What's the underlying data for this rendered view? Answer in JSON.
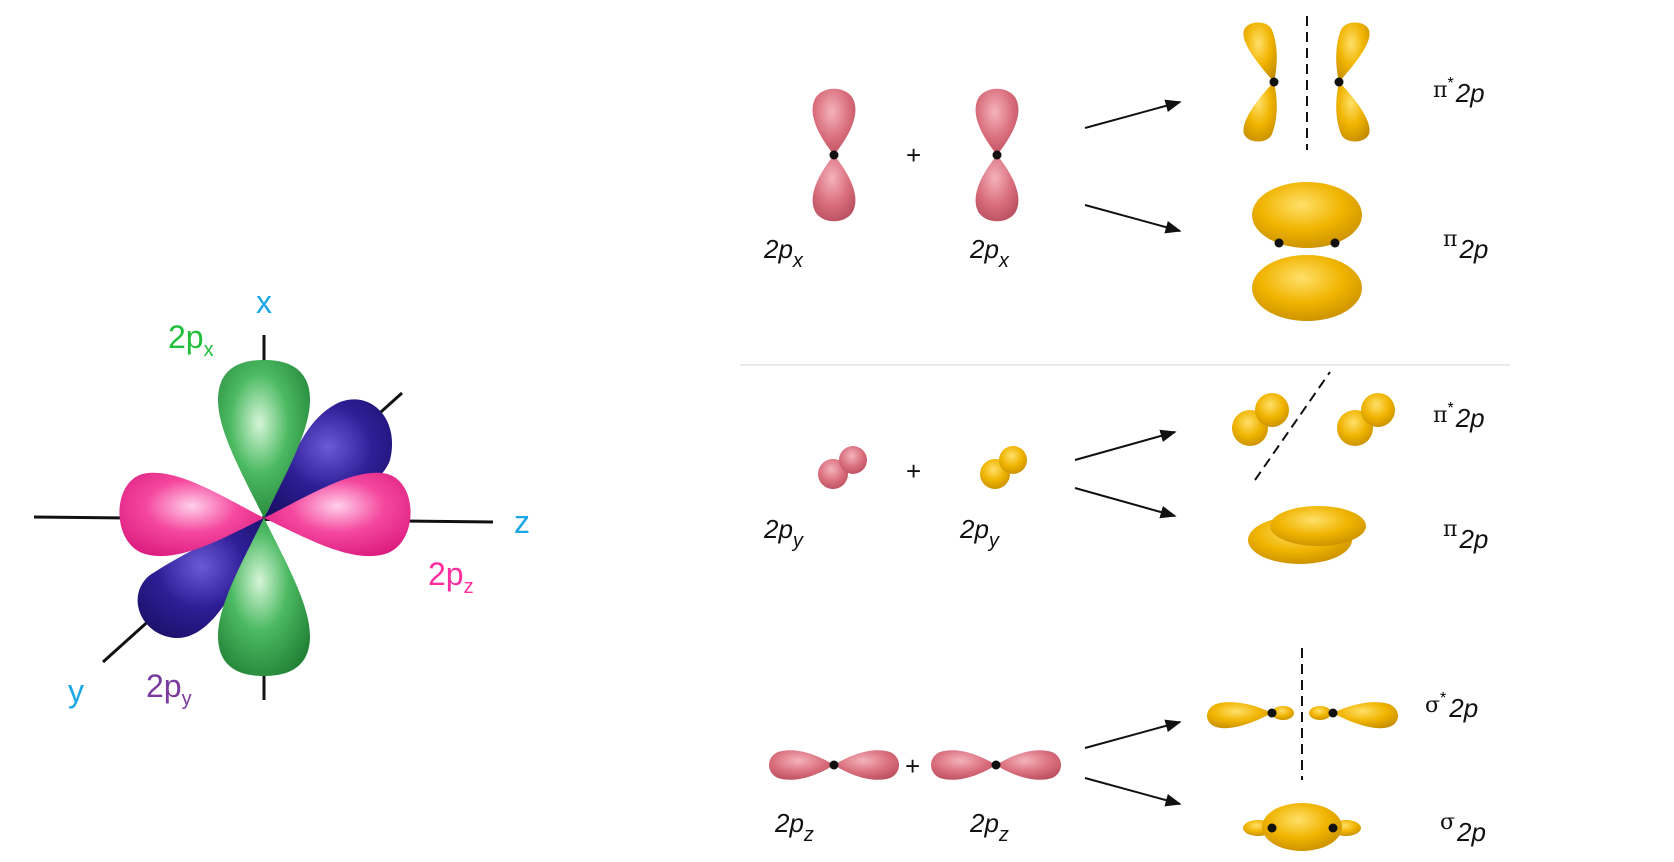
{
  "colors": {
    "axis_label": "#1aa7e8",
    "px": "#1fbf3a",
    "py": "#7a3aa0",
    "pz": "#ff2e9e",
    "lobe_green": "#2fa04a",
    "lobe_blue": "#2a1a8a",
    "lobe_pink": "#f01f8e",
    "atomic_orbital": "#d56a7a",
    "molecular_orbital": "#e9a800"
  },
  "left_figure": {
    "axes": {
      "x": "x",
      "y": "y",
      "z": "z"
    },
    "px": {
      "main": "2p",
      "sub": "x"
    },
    "py": {
      "main": "2p",
      "sub": "y"
    },
    "pz": {
      "main": "2p",
      "sub": "z"
    }
  },
  "right_figure": {
    "rows": [
      {
        "id": "x",
        "plus": "+",
        "left_label": {
          "main": "2p",
          "sub": "x"
        },
        "right_label": {
          "main": "2p",
          "sub": "x"
        },
        "antibonding": {
          "sym": "π",
          "star": "*",
          "rest": "2p"
        },
        "bonding": {
          "sym": "π",
          "rest": "2p"
        }
      },
      {
        "id": "y",
        "plus": "+",
        "left_label": {
          "main": "2p",
          "sub": "y"
        },
        "right_label": {
          "main": "2p",
          "sub": "y"
        },
        "antibonding": {
          "sym": "π",
          "star": "*",
          "rest": "2p"
        },
        "bonding": {
          "sym": "π",
          "rest": "2p"
        }
      },
      {
        "id": "z",
        "plus": "+",
        "left_label": {
          "main": "2p",
          "sub": "z"
        },
        "right_label": {
          "main": "2p",
          "sub": "z"
        },
        "antibonding": {
          "sym": "σ",
          "star": "*",
          "rest": "2p"
        },
        "bonding": {
          "sym": "σ",
          "rest": "2p"
        }
      }
    ]
  }
}
